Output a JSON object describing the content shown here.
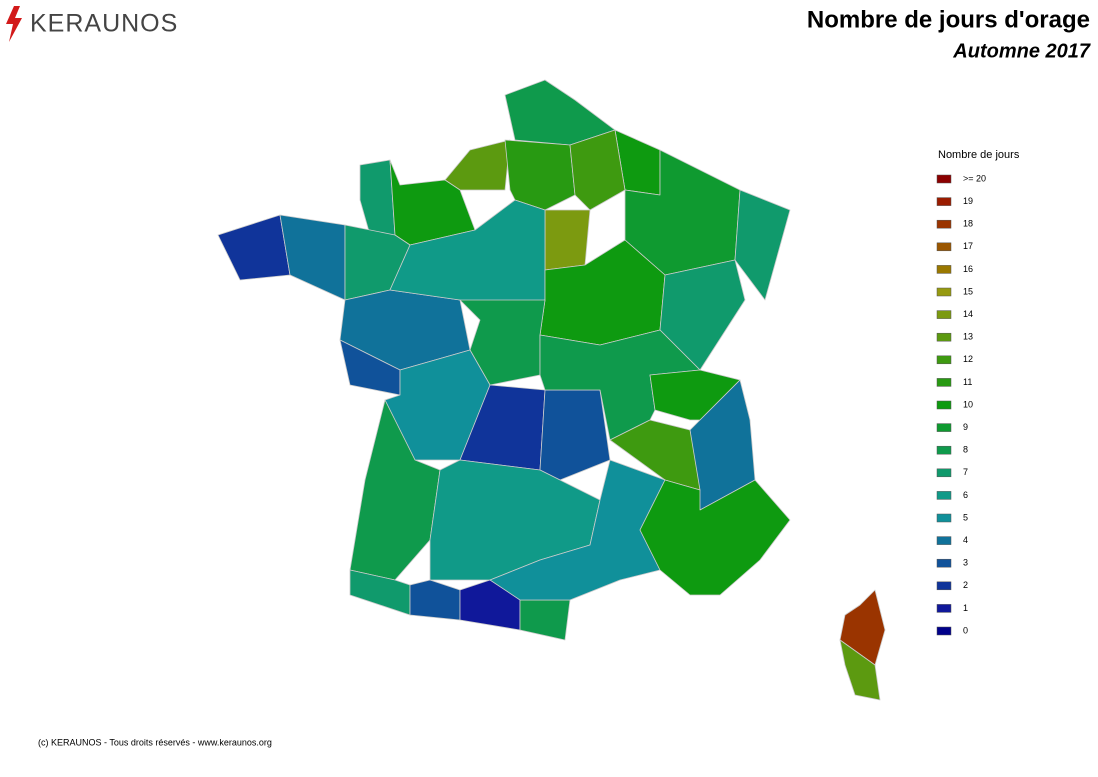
{
  "header": {
    "logo": "KERAUNOS",
    "title": "Nombre de jours d'orage",
    "subtitle": "Automne 2017"
  },
  "legend": {
    "title": "Nombre de jours",
    "items": [
      {
        "value": 20,
        "label": ">= 20",
        "color": "#8b0000"
      },
      {
        "value": 19,
        "color": "#9a1c00"
      },
      {
        "value": 18,
        "color": "#9a3400"
      },
      {
        "value": 17,
        "color": "#9a5600"
      },
      {
        "value": 16,
        "color": "#9a7800"
      },
      {
        "value": 15,
        "color": "#969a10"
      },
      {
        "value": 14,
        "color": "#7c9a10"
      },
      {
        "value": 13,
        "color": "#5c9a10"
      },
      {
        "value": 12,
        "color": "#3e9a10"
      },
      {
        "value": 11,
        "color": "#289a12"
      },
      {
        "value": 10,
        "color": "#0e9a10"
      },
      {
        "value": 9,
        "color": "#0f9a30"
      },
      {
        "value": 8,
        "color": "#0f9a4c"
      },
      {
        "value": 7,
        "color": "#109a6c"
      },
      {
        "value": 6,
        "color": "#109a88"
      },
      {
        "value": 5,
        "color": "#10909a"
      },
      {
        "value": 4,
        "color": "#10729a"
      },
      {
        "value": 3,
        "color": "#10529a"
      },
      {
        "value": 2,
        "color": "#10349a"
      },
      {
        "value": 1,
        "color": "#10189a"
      },
      {
        "value": 0,
        "color": "#00008a"
      }
    ]
  },
  "map": {
    "regions": [
      8,
      13,
      11,
      10,
      12,
      14,
      9,
      7,
      7,
      10,
      2,
      4,
      7,
      4,
      3,
      6,
      10,
      7,
      8,
      5,
      2,
      3,
      8,
      10,
      4,
      12,
      8,
      6,
      7,
      3,
      1,
      8,
      5,
      10,
      18,
      13
    ]
  },
  "footer": "(c) KERAUNOS - Tous droits réservés - www.keraunos.org"
}
